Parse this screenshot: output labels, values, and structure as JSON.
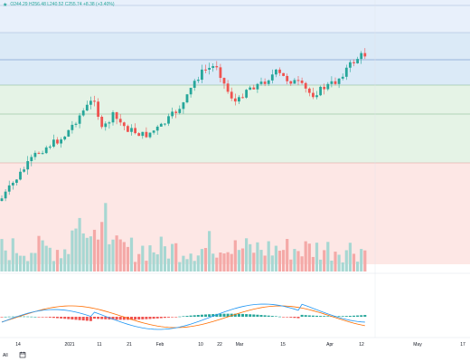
{
  "header": {
    "star_icon": "star-icon",
    "ohlc_text": "O244.29 H256.48 L240.52 C255.74 +8.38 (+3.40%)"
  },
  "chart_data": {
    "type": "candlestick",
    "x_ticks": [
      "14",
      "2021",
      "11",
      "21",
      "Feb",
      "10",
      "22",
      "Mar",
      "15",
      "Apr",
      "12",
      "May",
      "17"
    ],
    "bands": [
      {
        "color": "#e8f0fb"
      },
      {
        "color": "#dbeaf7"
      },
      {
        "color": "#e5f3e6"
      },
      {
        "color": "#fde7e5"
      }
    ],
    "price_series_approx": [
      {
        "label": "Jan start",
        "close": 70
      },
      {
        "label": "Feb",
        "close": 100
      },
      {
        "label": "Feb 22",
        "close": 118
      },
      {
        "label": "Mar",
        "close": 102
      },
      {
        "label": "Mar 15",
        "close": 112
      },
      {
        "label": "Apr",
        "close": 110
      },
      {
        "label": "Apr 12",
        "close": 124
      }
    ],
    "indicators": [
      "volume",
      "macd"
    ]
  },
  "footer": {
    "range_label": "All",
    "timezone_icon": "timezone-icon"
  },
  "colors": {
    "up": "#26a69a",
    "down": "#ef5350",
    "macd_line": "#2196f3",
    "signal_line": "#ff6d00"
  }
}
